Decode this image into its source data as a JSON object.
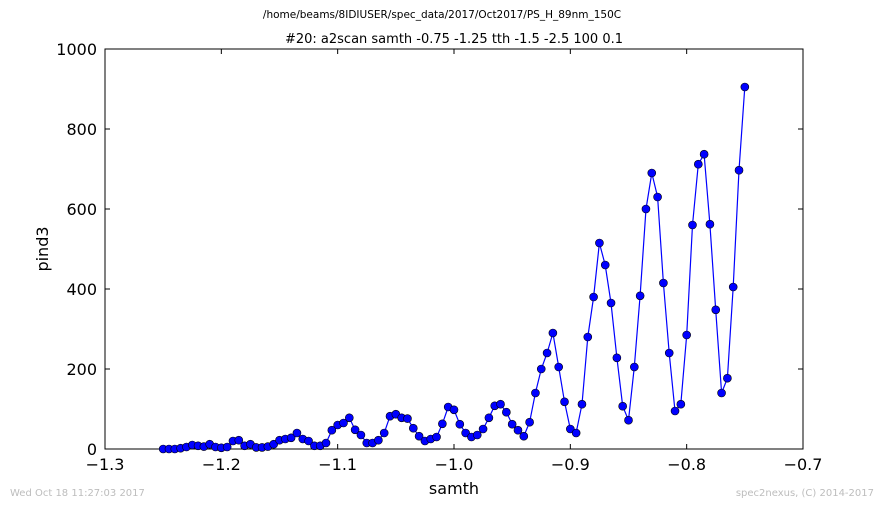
{
  "window": {
    "file_path": "/home/beams/8IDIUSER/spec_data/2017/Oct2017/PS_H_89nm_150C",
    "footer_left": "Wed Oct 18 11:27:03 2017",
    "footer_right": "spec2nexus, (C) 2014-2017"
  },
  "colors": {
    "series": "#0000ff",
    "background": "#ffffff",
    "footer_text": "#bdbdbd"
  },
  "chart_data": {
    "type": "line",
    "title": "#20: a2scan  samth -0.75 -1.25  tth -1.5 -2.5  100 0.1",
    "xlabel": "samth",
    "ylabel": "pind3",
    "xlim": [
      -1.3,
      -0.7
    ],
    "ylim": [
      0,
      1000
    ],
    "xticks": [
      "−1.3",
      "−1.2",
      "−1.1",
      "−1.0",
      "−0.9",
      "−0.8",
      "−0.7"
    ],
    "yticks": [
      "0",
      "200",
      "400",
      "600",
      "800",
      "1000"
    ],
    "grid": false,
    "legend": "none",
    "markers": "filled circles",
    "series": [
      {
        "x": [
          -1.25,
          -1.245,
          -1.24,
          -1.235,
          -1.23,
          -1.225,
          -1.22,
          -1.215,
          -1.21,
          -1.205,
          -1.2,
          -1.195,
          -1.19,
          -1.185,
          -1.18,
          -1.175,
          -1.17,
          -1.165,
          -1.16,
          -1.155,
          -1.15,
          -1.145,
          -1.14,
          -1.135,
          -1.13,
          -1.125,
          -1.12,
          -1.115,
          -1.11,
          -1.105,
          -1.1,
          -1.095,
          -1.09,
          -1.085,
          -1.08,
          -1.075,
          -1.07,
          -1.065,
          -1.06,
          -1.055,
          -1.05,
          -1.045,
          -1.04,
          -1.035,
          -1.03,
          -1.025,
          -1.02,
          -1.015,
          -1.01,
          -1.005,
          -1.0,
          -0.995,
          -0.99,
          -0.985,
          -0.98,
          -0.975,
          -0.97,
          -0.965,
          -0.96,
          -0.955,
          -0.95,
          -0.945,
          -0.94,
          -0.935,
          -0.93,
          -0.925,
          -0.92,
          -0.915,
          -0.91,
          -0.905,
          -0.9,
          -0.895,
          -0.89,
          -0.885,
          -0.88,
          -0.875,
          -0.87,
          -0.865,
          -0.86,
          -0.855,
          -0.85,
          -0.845,
          -0.84,
          -0.835,
          -0.83,
          -0.825,
          -0.82,
          -0.815,
          -0.81,
          -0.805,
          -0.8,
          -0.795,
          -0.79,
          -0.785,
          -0.78,
          -0.775,
          -0.77,
          -0.765,
          -0.76,
          -0.755,
          -0.75
        ],
        "y": [
          0,
          0,
          0,
          2,
          5,
          10,
          8,
          6,
          12,
          5,
          3,
          5,
          20,
          22,
          8,
          12,
          4,
          4,
          6,
          12,
          22,
          25,
          28,
          40,
          25,
          20,
          8,
          8,
          15,
          47,
          60,
          65,
          78,
          48,
          35,
          15,
          15,
          22,
          40,
          82,
          87,
          78,
          76,
          52,
          32,
          20,
          25,
          30,
          63,
          105,
          98,
          62,
          40,
          30,
          35,
          50,
          78,
          108,
          112,
          92,
          62,
          47,
          32,
          67,
          140,
          200,
          240,
          290,
          205,
          118,
          50,
          40,
          112,
          280,
          380,
          515,
          460,
          365,
          228,
          107,
          72,
          205,
          383,
          600,
          690,
          630,
          415,
          240,
          95,
          112,
          285,
          560,
          712,
          737,
          562,
          348,
          140,
          177,
          405,
          697,
          905
        ]
      }
    ]
  }
}
